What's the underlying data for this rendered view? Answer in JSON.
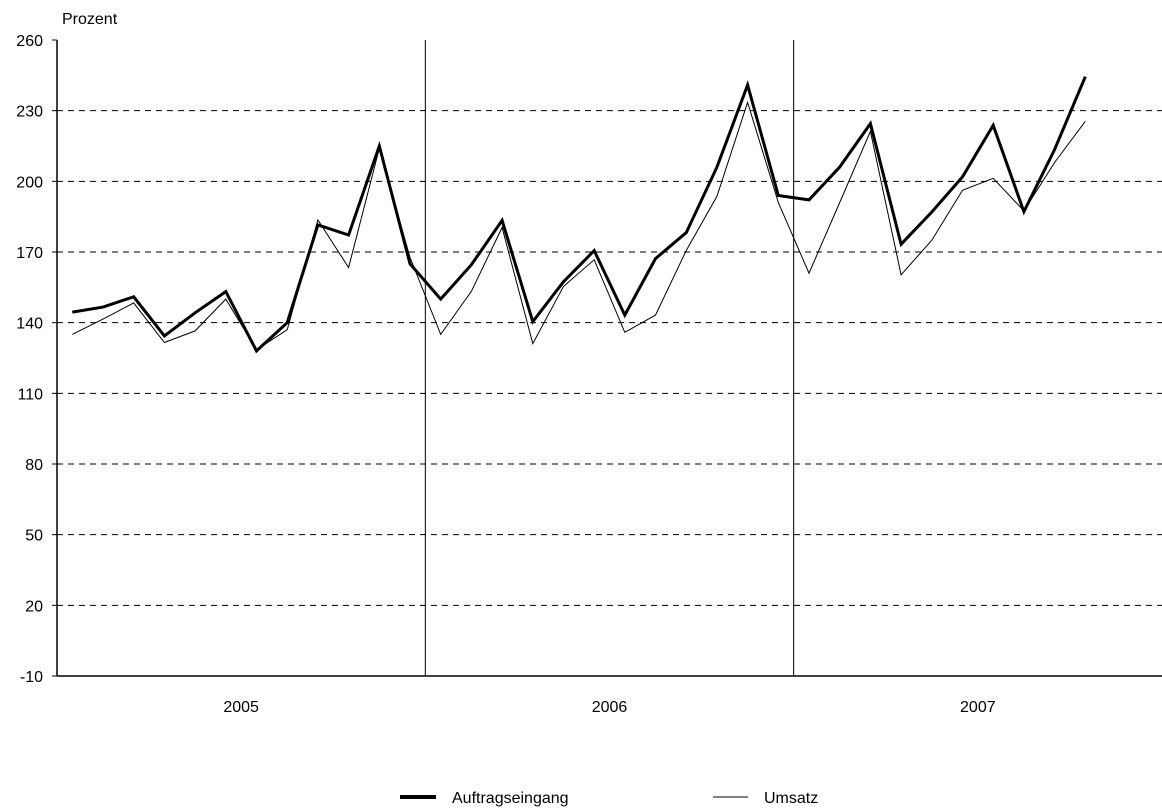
{
  "chart_data": {
    "type": "line",
    "ylabel": "Prozent",
    "ylim": [
      -10,
      260
    ],
    "yticks": [
      260,
      230,
      200,
      170,
      140,
      110,
      80,
      50,
      20,
      -10
    ],
    "gridlines": "dashed horizontal",
    "years": [
      "2005",
      "2006",
      "2007"
    ],
    "months_per_year": 12,
    "legend_position": "bottom",
    "series": [
      {
        "name": "Auftragseingang",
        "style": "thick",
        "color": "#000000",
        "values": [
          144.5,
          146.6,
          151.0,
          134.4,
          144.2,
          153.2,
          128.0,
          140.0,
          181.5,
          177.2,
          215.0,
          165.0,
          150.0,
          164.6,
          183.4,
          140.4,
          157.4,
          170.6,
          143.2,
          167.2,
          178.2,
          206.0,
          240.9,
          194.0,
          192.1,
          206.1,
          224.5,
          173.3,
          187.0,
          201.9,
          223.8,
          187.1,
          213.5,
          244.4
        ]
      },
      {
        "name": "Umsatz",
        "style": "thin",
        "color": "#000000",
        "values": [
          135.0,
          141.5,
          148.4,
          131.6,
          136.5,
          150.0,
          128.5,
          137.0,
          183.6,
          163.4,
          214.0,
          167.7,
          135.0,
          153.3,
          180.4,
          131.1,
          155.4,
          166.7,
          135.9,
          143.2,
          170.6,
          193.6,
          233.5,
          191.0,
          161.0,
          191.0,
          221.2,
          160.3,
          175.0,
          196.2,
          201.3,
          187.5,
          208.0,
          225.5
        ]
      }
    ]
  }
}
